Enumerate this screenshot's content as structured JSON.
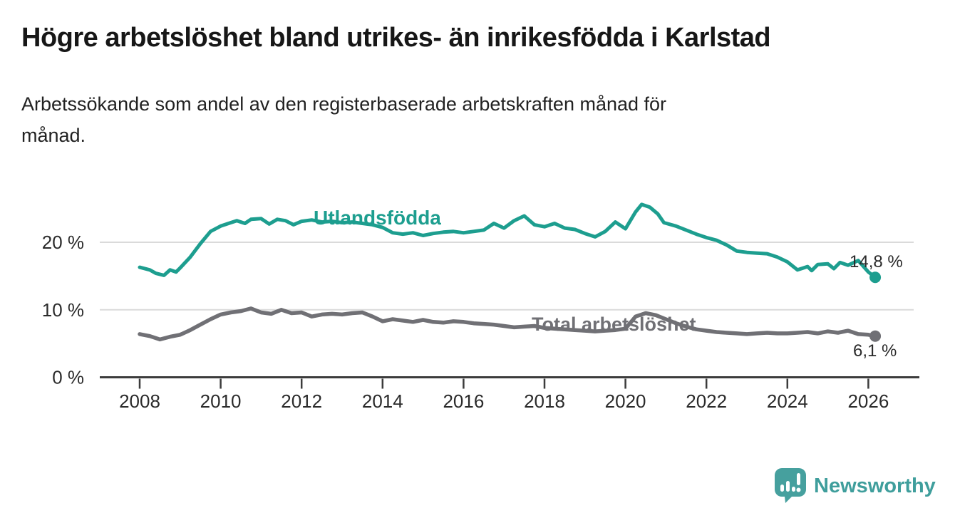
{
  "header": {
    "title": "Högre arbetslöshet bland utrikes- än inrikesfödda i Karlstad",
    "subtitle_lines": [
      "Arbetssökande som andel av den registerbaserade arbetskraften månad för",
      "månad."
    ]
  },
  "chart_data": {
    "type": "line",
    "title": "Högre arbetslöshet bland utrikes- än inrikesfödda i Karlstad",
    "subtitle": "Arbetssökande som andel av den registerbaserade arbetskraften månad för månad.",
    "grid": "horizontal",
    "legend_position": "inline-labels-on-lines",
    "x_axis": {
      "label": "",
      "range": [
        2007.2,
        2027.3
      ],
      "ticks": [
        {
          "value": 2008,
          "label": "2008"
        },
        {
          "value": 2010,
          "label": "2010"
        },
        {
          "value": 2012,
          "label": "2012"
        },
        {
          "value": 2014,
          "label": "2014"
        },
        {
          "value": 2016,
          "label": "2016"
        },
        {
          "value": 2018,
          "label": "2018"
        },
        {
          "value": 2020,
          "label": "2020"
        },
        {
          "value": 2022,
          "label": "2022"
        },
        {
          "value": 2024,
          "label": "2024"
        },
        {
          "value": 2026,
          "label": "2026"
        }
      ]
    },
    "y_axis": {
      "label": "",
      "unit": "%",
      "range": [
        0,
        28
      ],
      "ticks": [
        {
          "value": 0,
          "label": "0 %"
        },
        {
          "value": 10,
          "label": "10 %"
        },
        {
          "value": 20,
          "label": "20 %"
        }
      ],
      "gridlines": [
        10,
        20
      ]
    },
    "series": [
      {
        "name": "Utlandsfödda",
        "color": "#1D9E8F",
        "end_value": 14.8,
        "end_label": "14,8 %",
        "points": [
          [
            2008.0,
            16.3
          ],
          [
            2008.25,
            15.9
          ],
          [
            2008.4,
            15.4
          ],
          [
            2008.6,
            15.1
          ],
          [
            2008.75,
            15.9
          ],
          [
            2008.9,
            15.6
          ],
          [
            2009.0,
            16.2
          ],
          [
            2009.25,
            17.8
          ],
          [
            2009.5,
            19.8
          ],
          [
            2009.75,
            21.6
          ],
          [
            2010.0,
            22.4
          ],
          [
            2010.25,
            22.9
          ],
          [
            2010.4,
            23.2
          ],
          [
            2010.6,
            22.8
          ],
          [
            2010.75,
            23.4
          ],
          [
            2011.0,
            23.5
          ],
          [
            2011.2,
            22.7
          ],
          [
            2011.4,
            23.4
          ],
          [
            2011.6,
            23.2
          ],
          [
            2011.8,
            22.6
          ],
          [
            2012.0,
            23.1
          ],
          [
            2012.25,
            23.3
          ],
          [
            2012.5,
            23.0
          ],
          [
            2012.75,
            23.1
          ],
          [
            2013.0,
            22.9
          ],
          [
            2013.25,
            23.0
          ],
          [
            2013.5,
            22.8
          ],
          [
            2013.75,
            22.6
          ],
          [
            2014.0,
            22.2
          ],
          [
            2014.25,
            21.4
          ],
          [
            2014.5,
            21.2
          ],
          [
            2014.75,
            21.4
          ],
          [
            2015.0,
            21.0
          ],
          [
            2015.25,
            21.3
          ],
          [
            2015.5,
            21.5
          ],
          [
            2015.75,
            21.6
          ],
          [
            2016.0,
            21.4
          ],
          [
            2016.25,
            21.6
          ],
          [
            2016.5,
            21.8
          ],
          [
            2016.75,
            22.8
          ],
          [
            2017.0,
            22.1
          ],
          [
            2017.25,
            23.2
          ],
          [
            2017.5,
            23.9
          ],
          [
            2017.75,
            22.6
          ],
          [
            2018.0,
            22.3
          ],
          [
            2018.25,
            22.8
          ],
          [
            2018.5,
            22.1
          ],
          [
            2018.75,
            21.9
          ],
          [
            2019.0,
            21.3
          ],
          [
            2019.25,
            20.8
          ],
          [
            2019.5,
            21.6
          ],
          [
            2019.75,
            23.0
          ],
          [
            2020.0,
            22.0
          ],
          [
            2020.25,
            24.5
          ],
          [
            2020.4,
            25.6
          ],
          [
            2020.6,
            25.2
          ],
          [
            2020.8,
            24.2
          ],
          [
            2020.95,
            22.9
          ],
          [
            2021.25,
            22.4
          ],
          [
            2021.5,
            21.8
          ],
          [
            2021.75,
            21.2
          ],
          [
            2022.0,
            20.7
          ],
          [
            2022.25,
            20.3
          ],
          [
            2022.5,
            19.6
          ],
          [
            2022.75,
            18.7
          ],
          [
            2023.0,
            18.5
          ],
          [
            2023.25,
            18.4
          ],
          [
            2023.5,
            18.3
          ],
          [
            2023.75,
            17.8
          ],
          [
            2024.0,
            17.1
          ],
          [
            2024.25,
            15.9
          ],
          [
            2024.5,
            16.4
          ],
          [
            2024.6,
            15.8
          ],
          [
            2024.75,
            16.7
          ],
          [
            2025.0,
            16.8
          ],
          [
            2025.15,
            16.1
          ],
          [
            2025.3,
            17.0
          ],
          [
            2025.5,
            16.6
          ],
          [
            2025.75,
            17.3
          ],
          [
            2026.0,
            15.6
          ],
          [
            2026.17,
            14.8
          ]
        ]
      },
      {
        "name": "Total arbetslöshet",
        "color": "#707075",
        "end_value": 6.1,
        "end_label": "6,1 %",
        "points": [
          [
            2008.0,
            6.4
          ],
          [
            2008.25,
            6.1
          ],
          [
            2008.5,
            5.6
          ],
          [
            2008.75,
            6.0
          ],
          [
            2009.0,
            6.3
          ],
          [
            2009.25,
            7.0
          ],
          [
            2009.5,
            7.8
          ],
          [
            2009.75,
            8.6
          ],
          [
            2010.0,
            9.3
          ],
          [
            2010.25,
            9.6
          ],
          [
            2010.5,
            9.8
          ],
          [
            2010.75,
            10.2
          ],
          [
            2011.0,
            9.6
          ],
          [
            2011.25,
            9.4
          ],
          [
            2011.5,
            10.0
          ],
          [
            2011.75,
            9.5
          ],
          [
            2012.0,
            9.6
          ],
          [
            2012.25,
            9.0
          ],
          [
            2012.5,
            9.3
          ],
          [
            2012.75,
            9.4
          ],
          [
            2013.0,
            9.3
          ],
          [
            2013.25,
            9.5
          ],
          [
            2013.5,
            9.6
          ],
          [
            2013.75,
            9.0
          ],
          [
            2014.0,
            8.3
          ],
          [
            2014.25,
            8.6
          ],
          [
            2014.5,
            8.4
          ],
          [
            2014.75,
            8.2
          ],
          [
            2015.0,
            8.5
          ],
          [
            2015.25,
            8.2
          ],
          [
            2015.5,
            8.1
          ],
          [
            2015.75,
            8.3
          ],
          [
            2016.0,
            8.2
          ],
          [
            2016.25,
            8.0
          ],
          [
            2016.5,
            7.9
          ],
          [
            2016.75,
            7.8
          ],
          [
            2017.0,
            7.6
          ],
          [
            2017.25,
            7.4
          ],
          [
            2017.5,
            7.5
          ],
          [
            2017.75,
            7.6
          ],
          [
            2018.0,
            7.3
          ],
          [
            2018.25,
            7.2
          ],
          [
            2018.5,
            7.1
          ],
          [
            2018.75,
            7.0
          ],
          [
            2019.0,
            6.9
          ],
          [
            2019.25,
            6.8
          ],
          [
            2019.5,
            6.9
          ],
          [
            2019.75,
            7.0
          ],
          [
            2020.0,
            7.2
          ],
          [
            2020.25,
            9.0
          ],
          [
            2020.5,
            9.5
          ],
          [
            2020.75,
            9.2
          ],
          [
            2021.0,
            8.6
          ],
          [
            2021.25,
            8.0
          ],
          [
            2021.5,
            7.5
          ],
          [
            2021.75,
            7.1
          ],
          [
            2022.0,
            6.9
          ],
          [
            2022.25,
            6.7
          ],
          [
            2022.5,
            6.6
          ],
          [
            2022.75,
            6.5
          ],
          [
            2023.0,
            6.4
          ],
          [
            2023.25,
            6.5
          ],
          [
            2023.5,
            6.6
          ],
          [
            2023.75,
            6.5
          ],
          [
            2024.0,
            6.5
          ],
          [
            2024.25,
            6.6
          ],
          [
            2024.5,
            6.7
          ],
          [
            2024.75,
            6.5
          ],
          [
            2025.0,
            6.8
          ],
          [
            2025.25,
            6.6
          ],
          [
            2025.5,
            6.9
          ],
          [
            2025.75,
            6.4
          ],
          [
            2026.0,
            6.3
          ],
          [
            2026.17,
            6.1
          ]
        ]
      }
    ],
    "colors": {
      "gridline": "#dadada",
      "axis": "#3c3c3c",
      "tick_text": "#2b2b2b"
    }
  },
  "footer": {
    "brand": "Newsworthy",
    "brand_color": "#3f9e9c",
    "icon_color": "#46a09e"
  }
}
